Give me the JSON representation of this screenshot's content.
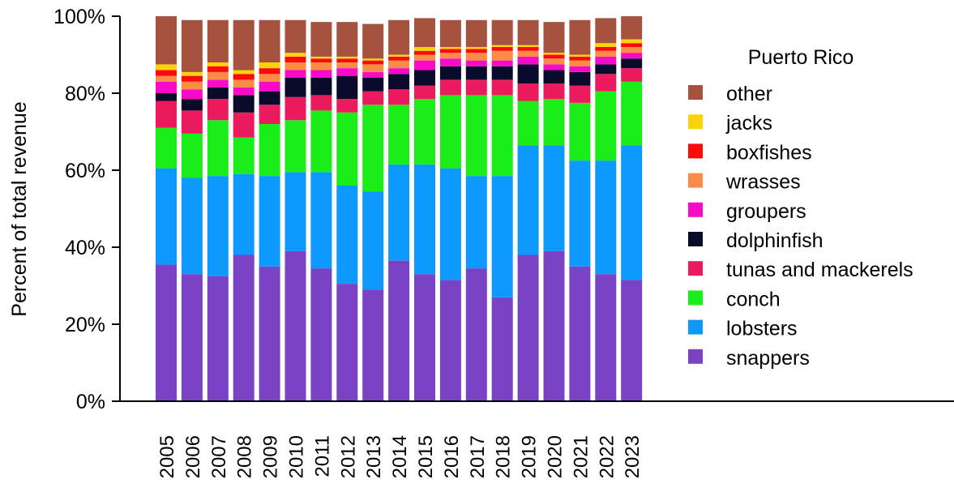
{
  "chart_data": {
    "type": "bar",
    "stacked": true,
    "title": "",
    "xlabel": "",
    "ylabel": "Percent of total revenue",
    "ylim": [
      0,
      100
    ],
    "yticks": [
      "0%",
      "20%",
      "40%",
      "60%",
      "80%",
      "100%"
    ],
    "ytick_values": [
      0,
      20,
      40,
      60,
      80,
      100
    ],
    "legend_title": "Puerto Rico",
    "legend_position": "right",
    "categories": [
      "2005",
      "2006",
      "2007",
      "2008",
      "2009",
      "2010",
      "2011",
      "2012",
      "2013",
      "2014",
      "2015",
      "2016",
      "2017",
      "2018",
      "2019",
      "2020",
      "2021",
      "2022",
      "2023"
    ],
    "series": [
      {
        "name": "snappers",
        "color": "#7a42c4",
        "values": [
          35.5,
          33,
          32.5,
          38,
          35,
          39,
          34.5,
          30.5,
          29,
          36.5,
          33,
          31.5,
          34.5,
          27,
          38,
          39,
          35,
          33,
          31.5
        ]
      },
      {
        "name": "lobsters",
        "color": "#0d99fc",
        "values": [
          25,
          25,
          26,
          21,
          23.5,
          20.5,
          25,
          25.5,
          25.5,
          25,
          28.5,
          29,
          24,
          31.5,
          28.5,
          27.5,
          27.5,
          29.5,
          35
        ]
      },
      {
        "name": "conch",
        "color": "#19ee19",
        "values": [
          10.5,
          11.5,
          14.5,
          9.5,
          13.5,
          13.5,
          16,
          19,
          22.5,
          15.5,
          17,
          19,
          21,
          21,
          11.5,
          12,
          15,
          18,
          16.5
        ]
      },
      {
        "name": "tunas and mackerels",
        "color": "#ec1b5d",
        "values": [
          7,
          6,
          5.5,
          6.5,
          5,
          6,
          4,
          3.5,
          3.5,
          4,
          3.5,
          4,
          4,
          4,
          4.5,
          4,
          4.5,
          4.5,
          3.5
        ]
      },
      {
        "name": "dolphinfish",
        "color": "#0a0a2a",
        "values": [
          2,
          3,
          3,
          4.5,
          3.5,
          5,
          4.5,
          6,
          3.5,
          4,
          4,
          3.5,
          3.5,
          3.5,
          5,
          3.5,
          3.5,
          2.5,
          2.5
        ]
      },
      {
        "name": "groupers",
        "color": "#f80ac8",
        "values": [
          3,
          2.5,
          2,
          2,
          2.5,
          2,
          2,
          2,
          1.5,
          1.5,
          2.5,
          2,
          1.5,
          1.5,
          2,
          1.5,
          1.5,
          2,
          1.5
        ]
      },
      {
        "name": "wrasses",
        "color": "#fb8c46",
        "values": [
          1.5,
          2,
          2,
          2,
          2,
          2,
          2,
          1.5,
          2,
          2,
          1.5,
          1.5,
          2,
          2.5,
          1.5,
          1.5,
          1.5,
          1.5,
          1.5
        ]
      },
      {
        "name": "boxfishes",
        "color": "#fb0a0a",
        "values": [
          1.5,
          1.5,
          1.5,
          1.5,
          1.5,
          1.5,
          1,
          1,
          1,
          1,
          1,
          1,
          1,
          1,
          1,
          1,
          1,
          1,
          1
        ]
      },
      {
        "name": "jacks",
        "color": "#fcd20a",
        "values": [
          1.5,
          1,
          1,
          1,
          1.5,
          1,
          0.5,
          0.5,
          0.5,
          0.5,
          1,
          0.5,
          0.5,
          0.5,
          0.5,
          0.5,
          0.5,
          1,
          1
        ]
      },
      {
        "name": "other",
        "color": "#a5523f",
        "values": [
          12.5,
          13.5,
          11,
          13,
          11,
          8.5,
          9,
          9,
          9,
          9,
          7.5,
          7,
          7,
          6.5,
          6.5,
          8,
          9,
          6.5,
          6
        ]
      }
    ]
  }
}
